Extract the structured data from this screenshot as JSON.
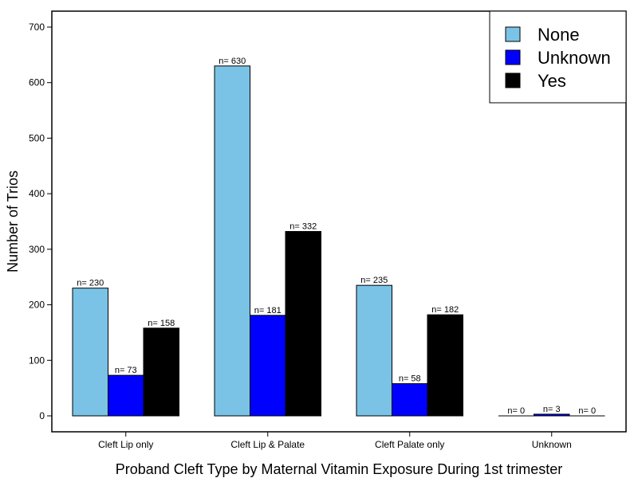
{
  "chart_data": {
    "type": "bar",
    "xlabel": "Proband Cleft Type by Maternal Vitamin Exposure During 1st trimester",
    "ylabel": "Number of Trios",
    "categories": [
      "Cleft Lip only",
      "Cleft Lip & Palate",
      "Cleft Palate only",
      "Unknown"
    ],
    "series": [
      {
        "name": "None",
        "color": "#7ac3e6",
        "values": [
          230,
          630,
          235,
          0
        ],
        "labels": [
          "n= 230",
          "n= 630",
          "n= 235",
          "n= 0"
        ]
      },
      {
        "name": "Unknown",
        "color": "#0000ff",
        "values": [
          73,
          181,
          58,
          3
        ],
        "labels": [
          "n= 73",
          "n= 181",
          "n= 58",
          "n= 3"
        ]
      },
      {
        "name": "Yes",
        "color": "#000000",
        "values": [
          158,
          332,
          182,
          0
        ],
        "labels": [
          "n= 158",
          "n= 332",
          "n= 182",
          "n= 0"
        ]
      }
    ],
    "ylim": [
      0,
      700
    ],
    "yticks": [
      0,
      100,
      200,
      300,
      400,
      500,
      600,
      700
    ],
    "ytick_labels": [
      "0",
      "100",
      "200",
      "300",
      "400",
      "500",
      "600",
      "700"
    ],
    "legend_position": "top-right",
    "grid": false
  }
}
